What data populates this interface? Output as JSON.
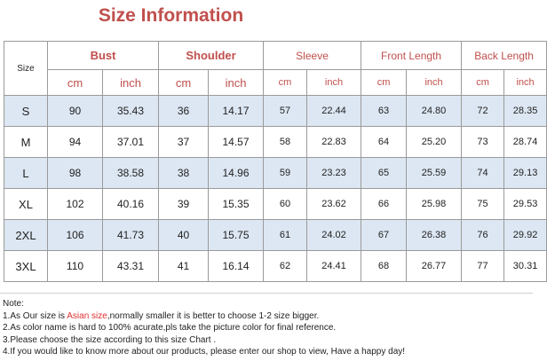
{
  "title": "Size Information",
  "header": {
    "size_label": "Size",
    "groups": [
      "Bust",
      "Shoulder",
      "Sleeve",
      "Front Length",
      "Back Length"
    ],
    "units": [
      "cm",
      "inch",
      "cm",
      "inch",
      "cm",
      "inch",
      "cm",
      "inch",
      "cm",
      "inch"
    ]
  },
  "rows": [
    {
      "size": "S",
      "values": [
        "90",
        "35.43",
        "36",
        "14.17",
        "57",
        "22.44",
        "63",
        "24.80",
        "72",
        "28.35"
      ]
    },
    {
      "size": "M",
      "values": [
        "94",
        "37.01",
        "37",
        "14.57",
        "58",
        "22.83",
        "64",
        "25.20",
        "73",
        "28.74"
      ]
    },
    {
      "size": "L",
      "values": [
        "98",
        "38.58",
        "38",
        "14.96",
        "59",
        "23.23",
        "65",
        "25.59",
        "74",
        "29.13"
      ]
    },
    {
      "size": "XL",
      "values": [
        "102",
        "40.16",
        "39",
        "15.35",
        "60",
        "23.62",
        "66",
        "25.98",
        "75",
        "29.53"
      ]
    },
    {
      "size": "2XL",
      "values": [
        "106",
        "41.73",
        "40",
        "15.75",
        "61",
        "24.02",
        "67",
        "26.38",
        "76",
        "29.92"
      ]
    },
    {
      "size": "3XL",
      "values": [
        "110",
        "43.31",
        "41",
        "16.14",
        "62",
        "24.41",
        "68",
        "26.77",
        "77",
        "30.31"
      ]
    }
  ],
  "notes": {
    "heading": "Note:",
    "line1_pre": "1.As Our size is ",
    "line1_highlight": "Asian size",
    "line1_post": ",normally smaller it is better to choose 1-2 size bigger.",
    "line2": "2.As color name is hard to 100% acurate,pls take the picture color for final reference.",
    "line3": "3.Please choose the size according to this size Chart .",
    "line4": "4.If you would like to know more about our products, please enter our shop to view, Have a happy day!"
  },
  "colors": {
    "accent": "#c0504d",
    "row_shade": "#dde7f3",
    "highlight": "#e03030"
  }
}
